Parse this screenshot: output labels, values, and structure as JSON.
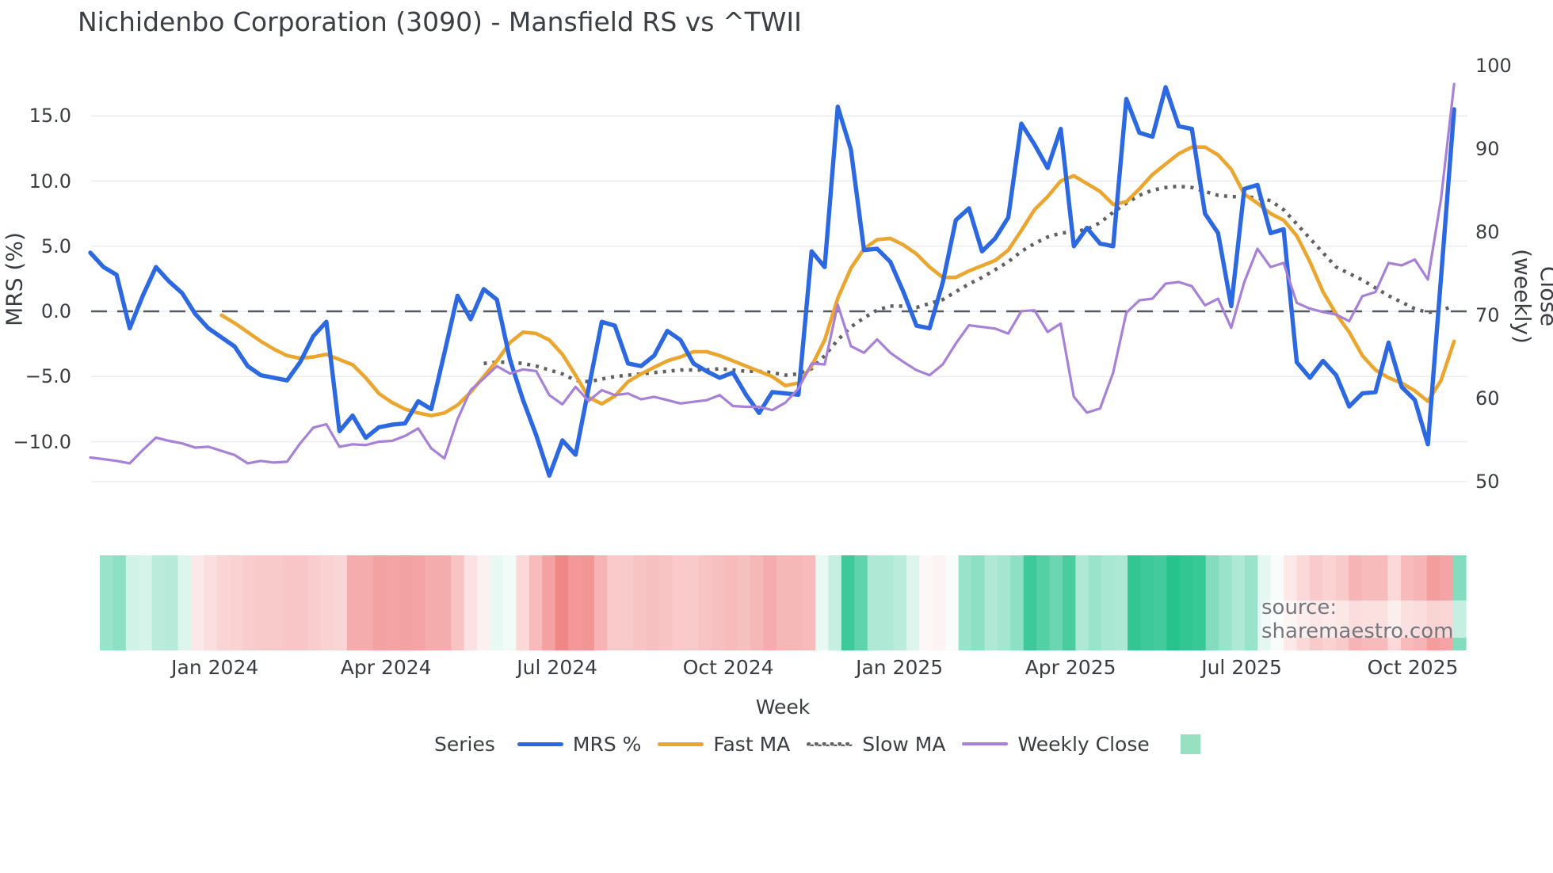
{
  "title": "Nichidenbo Corporation (3090) - Mansfield RS vs ^TWII",
  "watermark": {
    "text": "source: sharemaestro.com"
  },
  "axes": {
    "left_title": "MRS (%)",
    "right_title": "Close (weekly)",
    "x_title": "Week",
    "left_tick_labels": [
      "15.0",
      "10.0",
      "5.0",
      "0.0",
      "−5.0",
      "−10.0"
    ],
    "left_tick_values": [
      15,
      10,
      5,
      0,
      -5,
      -10
    ],
    "right_tick_labels": [
      "100",
      "90",
      "80",
      "70",
      "60",
      "50"
    ],
    "right_tick_values": [
      100,
      90,
      80,
      70,
      60,
      50
    ],
    "x_tick_labels": [
      "Jan 2024",
      "Apr 2024",
      "Jul 2024",
      "Oct 2024",
      "Jan 2025",
      "Apr 2025",
      "Jul 2025",
      "Oct 2025"
    ],
    "x_tick_weeks": [
      9.5,
      22.55,
      35.6,
      48.65,
      61.7,
      74.75,
      87.8,
      100.85
    ]
  },
  "legend": {
    "title": "Series",
    "items": [
      {
        "label": "MRS %",
        "color": "#2c68e0",
        "style": "solid"
      },
      {
        "label": "Fast MA",
        "color": "#eaa62e",
        "style": "solid"
      },
      {
        "label": "Slow MA",
        "color": "#616161",
        "style": "dotted"
      },
      {
        "label": "Weekly Close",
        "color": "#a780d8",
        "style": "solid"
      }
    ],
    "heat_swatch_color": "#97e1c2"
  },
  "colors": {
    "mrs": "#2c68e0",
    "fast": "#eaa62e",
    "slow": "#616161",
    "close": "#a780d8",
    "grid": "#e9edf2",
    "zero_line": "#55585f",
    "heat_positive": "#1bc087",
    "heat_negative": "#ed6868"
  },
  "chart_data": {
    "type": "line",
    "x_unit": "weeks",
    "n_weeks": 105,
    "title": "Nichidenbo Corporation (3090) - Mansfield RS vs ^TWII",
    "xlabel": "Week",
    "ylabel_left": "MRS (%)",
    "ylabel_right": "Close (weekly)",
    "ylim_left": [
      -14,
      18
    ],
    "ylim_right": [
      48,
      100
    ],
    "legend_position": "bottom",
    "grid": true,
    "series": [
      {
        "name": "MRS %",
        "axis": "left",
        "values": [
          4.5,
          3.4,
          2.8,
          -1.3,
          1.2,
          3.4,
          2.3,
          1.4,
          -0.2,
          -1.3,
          -2.0,
          -2.7,
          -4.2,
          -4.9,
          -5.1,
          -5.3,
          -3.9,
          -1.9,
          -0.8,
          -9.2,
          -8.0,
          -9.7,
          -8.9,
          -8.7,
          -8.6,
          -6.9,
          -7.5,
          -3.2,
          1.2,
          -0.6,
          1.7,
          0.9,
          -3.7,
          -6.8,
          -9.5,
          -12.6,
          -9.9,
          -11.0,
          -5.9,
          -0.8,
          -1.1,
          -4.0,
          -4.2,
          -3.4,
          -1.5,
          -2.2,
          -4.0,
          -4.6,
          -5.1,
          -4.7,
          -6.4,
          -7.8,
          -6.2,
          -6.3,
          -6.4,
          4.6,
          3.4,
          15.7,
          12.4,
          4.7,
          4.8,
          3.8,
          1.5,
          -1.1,
          -1.3,
          2.2,
          7.0,
          7.9,
          4.6,
          5.6,
          7.2,
          14.4,
          12.8,
          11.0,
          14.0,
          5.0,
          6.4,
          5.2,
          5.0,
          16.3,
          13.7,
          13.4,
          17.2,
          14.2,
          14.0,
          7.5,
          6.0,
          0.4,
          9.4,
          9.7,
          6.0,
          6.3,
          -3.9,
          -5.1,
          -3.8,
          -4.9,
          -7.3,
          -6.3,
          -6.2,
          -2.4,
          -5.8,
          -6.8,
          -10.2,
          2.6,
          15.5
        ]
      },
      {
        "name": "Fast MA",
        "axis": "left",
        "values": [
          null,
          null,
          null,
          null,
          null,
          null,
          null,
          null,
          null,
          null,
          -0.3,
          -0.9,
          -1.6,
          -2.3,
          -2.9,
          -3.4,
          -3.6,
          -3.5,
          -3.3,
          -3.7,
          -4.1,
          -5.1,
          -6.3,
          -7.0,
          -7.5,
          -7.8,
          -8.0,
          -7.8,
          -7.2,
          -6.2,
          -5.0,
          -3.8,
          -2.4,
          -1.6,
          -1.7,
          -2.2,
          -3.3,
          -4.9,
          -6.6,
          -7.1,
          -6.5,
          -5.4,
          -4.8,
          -4.3,
          -3.8,
          -3.5,
          -3.1,
          -3.1,
          -3.4,
          -3.8,
          -4.2,
          -4.6,
          -5.0,
          -5.7,
          -5.5,
          -4.2,
          -2.2,
          1.0,
          3.3,
          4.8,
          5.5,
          5.6,
          5.1,
          4.4,
          3.4,
          2.6,
          2.6,
          3.1,
          3.5,
          3.9,
          4.7,
          6.2,
          7.8,
          8.8,
          10.0,
          10.4,
          9.8,
          9.2,
          8.2,
          8.4,
          9.4,
          10.5,
          11.3,
          12.1,
          12.6,
          12.6,
          12.0,
          10.9,
          9.0,
          8.3,
          7.5,
          7.0,
          5.8,
          3.8,
          1.5,
          -0.2,
          -1.6,
          -3.4,
          -4.5,
          -5.1,
          -5.5,
          -6.1,
          -6.9,
          -5.3,
          -2.3
        ]
      },
      {
        "name": "Slow MA",
        "axis": "left",
        "values": [
          null,
          null,
          null,
          null,
          null,
          null,
          null,
          null,
          null,
          null,
          null,
          null,
          null,
          null,
          null,
          null,
          null,
          null,
          null,
          null,
          null,
          null,
          null,
          null,
          null,
          null,
          null,
          null,
          null,
          null,
          -4.0,
          -3.9,
          -3.9,
          -4.0,
          -4.2,
          -4.5,
          -4.8,
          -5.3,
          -5.4,
          -5.2,
          -5.0,
          -4.9,
          -4.8,
          -4.7,
          -4.6,
          -4.5,
          -4.5,
          -4.5,
          -4.4,
          -4.5,
          -4.6,
          -4.6,
          -4.7,
          -4.9,
          -4.8,
          -4.4,
          -3.4,
          -2.2,
          -1.2,
          -0.5,
          0.1,
          0.4,
          0.4,
          0.3,
          0.6,
          0.9,
          1.5,
          2.1,
          2.6,
          3.2,
          3.8,
          4.6,
          5.2,
          5.7,
          6.0,
          6.1,
          6.3,
          6.8,
          7.6,
          8.3,
          8.9,
          9.3,
          9.5,
          9.6,
          9.5,
          9.2,
          8.9,
          8.8,
          8.8,
          8.7,
          8.5,
          7.8,
          6.7,
          5.6,
          4.5,
          3.4,
          2.9,
          2.4,
          1.8,
          1.2,
          0.7,
          0.2,
          -0.1,
          0.1,
          0.4
        ]
      },
      {
        "name": "Weekly Close",
        "axis": "right",
        "values": [
          52.9,
          52.7,
          52.5,
          52.2,
          53.8,
          55.3,
          54.9,
          54.6,
          54.1,
          54.2,
          53.7,
          53.2,
          52.2,
          52.5,
          52.3,
          52.4,
          54.6,
          56.5,
          56.9,
          54.2,
          54.5,
          54.4,
          54.8,
          54.9,
          55.5,
          56.4,
          54.0,
          52.8,
          57.5,
          61.0,
          62.4,
          63.9,
          63.0,
          63.5,
          63.3,
          60.4,
          59.3,
          61.4,
          59.7,
          61.0,
          60.4,
          60.6,
          59.9,
          60.2,
          59.8,
          59.4,
          59.6,
          59.8,
          60.4,
          59.1,
          59.0,
          59.0,
          58.6,
          59.5,
          61.2,
          64.2,
          64.1,
          71.3,
          66.3,
          65.5,
          67.1,
          65.5,
          64.4,
          63.4,
          62.8,
          64.1,
          66.6,
          68.8,
          68.6,
          68.4,
          67.8,
          70.5,
          70.6,
          68.0,
          69.0,
          60.2,
          58.3,
          58.8,
          63.1,
          70.3,
          71.8,
          72.0,
          73.8,
          74.0,
          73.5,
          71.2,
          72.0,
          68.5,
          74.0,
          78.0,
          75.8,
          76.3,
          71.5,
          70.8,
          70.4,
          70.1,
          69.3,
          72.3,
          72.8,
          76.3,
          76.0,
          76.7,
          74.3,
          84.0,
          97.8
        ]
      }
    ],
    "heatmap_strip": {
      "description": "weekly momentum heat strip, -1 strong red to +1 strong green",
      "values": [
        0.45,
        0.5,
        0.2,
        0.18,
        0.3,
        0.32,
        0.15,
        -0.15,
        -0.22,
        -0.28,
        -0.3,
        -0.33,
        -0.35,
        -0.35,
        -0.38,
        -0.38,
        -0.33,
        -0.3,
        -0.28,
        -0.55,
        -0.55,
        -0.62,
        -0.6,
        -0.62,
        -0.6,
        -0.55,
        -0.55,
        -0.4,
        -0.2,
        -0.1,
        0.1,
        0.06,
        -0.25,
        -0.45,
        -0.62,
        -0.8,
        -0.68,
        -0.7,
        -0.5,
        -0.35,
        -0.35,
        -0.4,
        -0.42,
        -0.4,
        -0.35,
        -0.35,
        -0.4,
        -0.42,
        -0.45,
        -0.42,
        -0.48,
        -0.55,
        -0.48,
        -0.48,
        -0.45,
        0.1,
        0.25,
        0.85,
        0.7,
        0.35,
        0.35,
        0.3,
        0.15,
        -0.05,
        -0.08,
        0.03,
        0.45,
        0.5,
        0.35,
        0.4,
        0.5,
        0.85,
        0.75,
        0.65,
        0.8,
        0.35,
        0.45,
        0.38,
        0.36,
        0.9,
        0.85,
        0.82,
        0.95,
        0.9,
        0.88,
        0.55,
        0.45,
        0.35,
        0.45,
        0.12,
        0.03,
        -0.15,
        -0.25,
        -0.35,
        -0.3,
        -0.35,
        -0.5,
        -0.45,
        -0.45,
        -0.25,
        -0.45,
        -0.5,
        -0.65,
        -0.6,
        0.55
      ]
    }
  }
}
